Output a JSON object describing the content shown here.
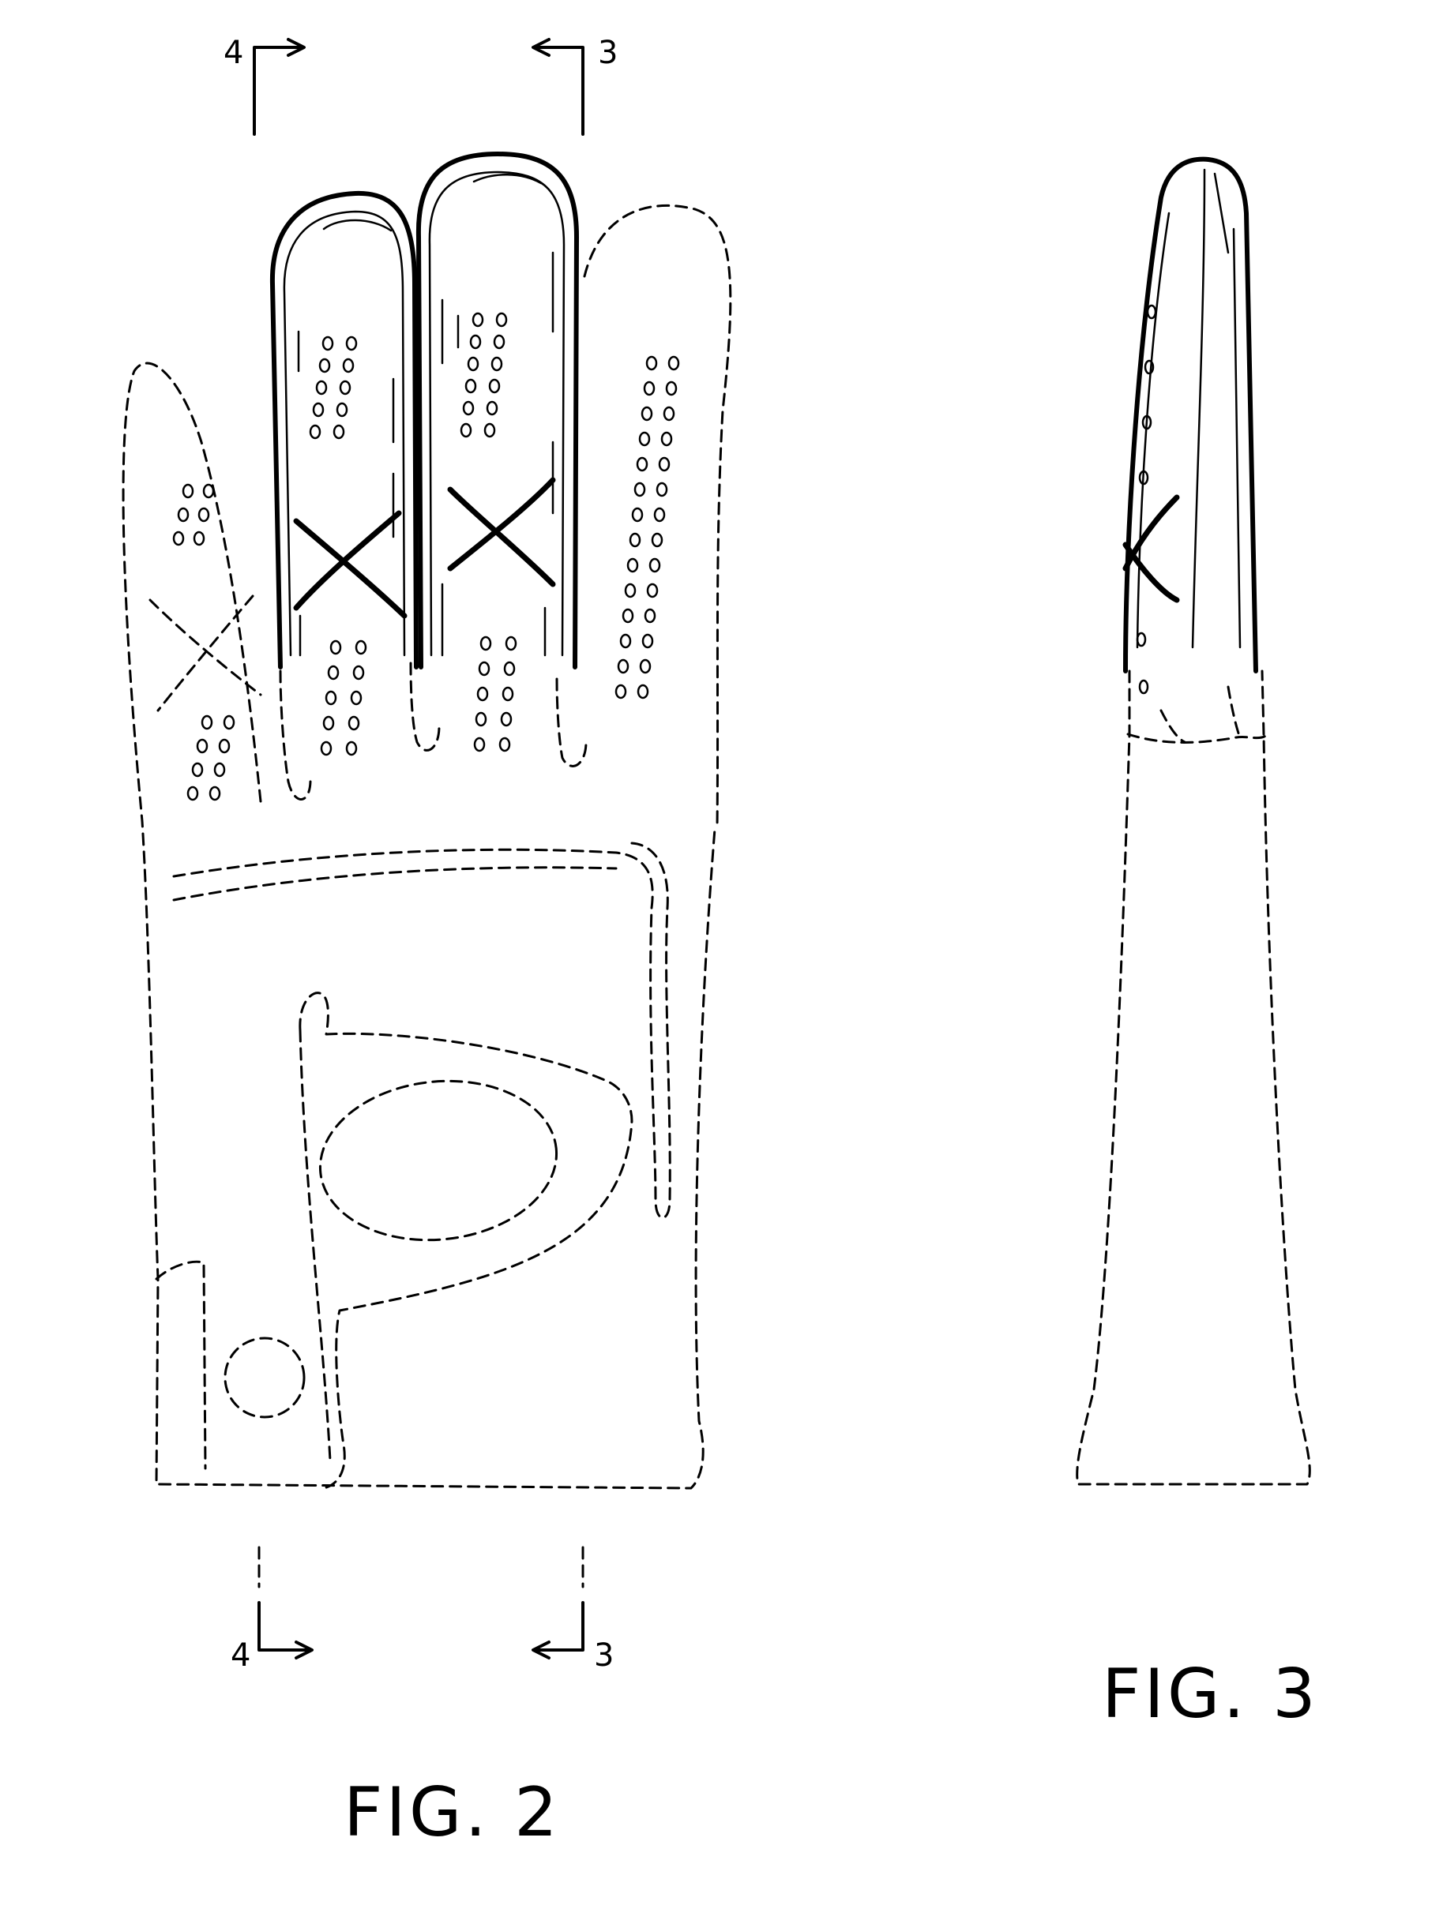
{
  "figures": [
    {
      "id": "fig2",
      "label": "FIG. 2"
    },
    {
      "id": "fig3",
      "label": "FIG. 3"
    }
  ],
  "section_markers": [
    {
      "id": "4-top",
      "label": "4"
    },
    {
      "id": "3-top",
      "label": "3"
    },
    {
      "id": "4-bottom",
      "label": "4"
    },
    {
      "id": "3-bottom",
      "label": "3"
    }
  ]
}
